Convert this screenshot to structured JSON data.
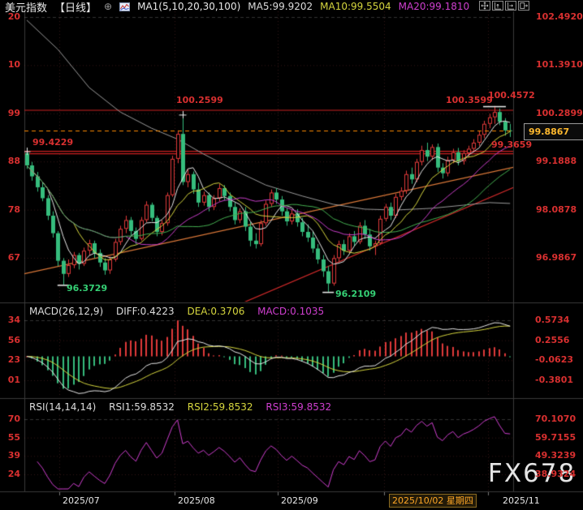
{
  "header": {
    "title": "美元指数",
    "period": "【日线】",
    "ma_group_label": "MA1(5,10,20,30,100)",
    "ma_values": [
      {
        "label": "MA5:99.9202",
        "color": "#dcdcdc"
      },
      {
        "label": "MA10:99.5504",
        "color": "#d6d63e"
      },
      {
        "label": "MA20:99.1810",
        "color": "#cf3fcf"
      }
    ]
  },
  "toolbar": {
    "icons": [
      "move-tool",
      "y-axis-scale",
      "x-axis-scale",
      "pan-right"
    ]
  },
  "watermark": "FX678",
  "macd_panel": {
    "title": "MACD(26,12,9)",
    "values": [
      {
        "label": "DIFF:0.4223",
        "color": "#dcdcdc"
      },
      {
        "label": "DEA:0.3706",
        "color": "#d6d63e"
      },
      {
        "label": "MACD:0.1035",
        "color": "#cf3fcf"
      }
    ],
    "axis_right": [
      "0.5734",
      "0.2556",
      "-0.0623",
      "-0.3801"
    ],
    "axis_left_clipped": [
      "34",
      "56",
      "23",
      "01"
    ]
  },
  "rsi_panel": {
    "title": "RSI(14,14,14)",
    "values": [
      {
        "label": "RSI1:59.8532",
        "color": "#dcdcdc"
      },
      {
        "label": "RSI2:59.8532",
        "color": "#d6d63e"
      },
      {
        "label": "RSI3:59.8532",
        "color": "#cf3fcf"
      }
    ],
    "axis_right": [
      "70.1070",
      "59.7155",
      "49.3239",
      "38.9324"
    ],
    "axis_left_clipped": [
      "70",
      "55",
      "39",
      "24"
    ]
  },
  "chart_data": {
    "type": "candlestick",
    "title": "美元指数 日线 (US Dollar Index, Daily)",
    "price_axis": [
      "102.4920",
      "101.3910",
      "100.2899",
      "99.1888",
      "98.0878",
      "96.9867"
    ],
    "price_axis_left_clipped": [
      "20",
      "10",
      "99",
      "88",
      "78",
      "67"
    ],
    "time_axis": [
      {
        "label": "2025/07",
        "highlight": false
      },
      {
        "label": "2025/08",
        "highlight": false
      },
      {
        "label": "2025/09",
        "highlight": false
      },
      {
        "label": "2025/10/02 星期四",
        "highlight": true
      },
      {
        "label": "2025/11",
        "highlight": false
      }
    ],
    "current_price_label": "99.8867",
    "colors": {
      "up": "#e03a3a",
      "down": "#36bd7d",
      "ma5": "#e8e8e8",
      "ma10": "#d6d63e",
      "ma20": "#c93ec9",
      "ma30": "#45b051",
      "ma100": "#9a9a9a",
      "diff": "#e8e8e8",
      "dea": "#d6d63e",
      "rsi": "#cf3fcf",
      "level": "#cc2020",
      "trend_orange": "#e07b3a",
      "trend_red": "#d52b2b",
      "last_price": "#ff8c00"
    },
    "ma_periods": [
      5,
      10,
      20,
      30
    ],
    "candles": [
      [
        99.38,
        99.4229,
        99.02,
        99.1
      ],
      [
        99.1,
        99.18,
        98.75,
        98.85
      ],
      [
        98.85,
        98.95,
        98.5,
        98.6
      ],
      [
        98.6,
        98.72,
        98.28,
        98.35
      ],
      [
        98.35,
        98.42,
        97.85,
        97.95
      ],
      [
        97.95,
        98.05,
        97.45,
        97.55
      ],
      [
        97.55,
        97.6,
        96.8,
        96.92
      ],
      [
        96.92,
        96.98,
        96.3729,
        96.62
      ],
      [
        96.62,
        96.95,
        96.55,
        96.82
      ],
      [
        96.82,
        97.12,
        96.75,
        97.05
      ],
      [
        97.05,
        97.1,
        96.72,
        96.85
      ],
      [
        96.85,
        97.22,
        96.8,
        97.15
      ],
      [
        97.15,
        97.4,
        97.05,
        97.32
      ],
      [
        97.32,
        97.38,
        96.98,
        97.1
      ],
      [
        97.1,
        97.18,
        96.78,
        96.88
      ],
      [
        96.88,
        96.98,
        96.6,
        96.7
      ],
      [
        96.7,
        97.02,
        96.62,
        96.95
      ],
      [
        96.95,
        97.42,
        96.9,
        97.35
      ],
      [
        97.35,
        97.72,
        97.28,
        97.65
      ],
      [
        97.65,
        97.95,
        97.55,
        97.85
      ],
      [
        97.85,
        97.92,
        97.5,
        97.6
      ],
      [
        97.6,
        97.68,
        97.3,
        97.42
      ],
      [
        97.42,
        97.92,
        97.38,
        97.85
      ],
      [
        97.85,
        98.28,
        97.8,
        98.2
      ],
      [
        98.2,
        98.25,
        97.82,
        97.9
      ],
      [
        97.9,
        97.95,
        97.48,
        97.58
      ],
      [
        97.58,
        97.85,
        97.5,
        97.78
      ],
      [
        97.78,
        98.48,
        97.72,
        98.42
      ],
      [
        98.42,
        99.32,
        98.38,
        99.25
      ],
      [
        99.25,
        99.9,
        99.15,
        99.82
      ],
      [
        99.82,
        100.2599,
        98.65,
        98.72
      ],
      [
        98.72,
        99.02,
        98.6,
        98.9
      ],
      [
        98.9,
        98.96,
        98.45,
        98.55
      ],
      [
        98.55,
        98.7,
        98.15,
        98.25
      ],
      [
        98.25,
        98.5,
        98.18,
        98.42
      ],
      [
        98.42,
        98.48,
        98.05,
        98.15
      ],
      [
        98.15,
        98.42,
        98.08,
        98.35
      ],
      [
        98.35,
        98.68,
        98.28,
        98.58
      ],
      [
        98.58,
        98.65,
        98.3,
        98.4
      ],
      [
        98.4,
        98.48,
        98.05,
        98.15
      ],
      [
        98.15,
        98.25,
        97.75,
        97.85
      ],
      [
        97.85,
        98.12,
        97.78,
        98.05
      ],
      [
        98.05,
        98.15,
        97.6,
        97.7
      ],
      [
        97.7,
        97.8,
        97.25,
        97.38
      ],
      [
        97.38,
        97.55,
        97.2,
        97.3
      ],
      [
        97.3,
        97.85,
        97.25,
        97.78
      ],
      [
        97.78,
        98.3,
        97.72,
        98.22
      ],
      [
        98.22,
        98.55,
        98.15,
        98.48
      ],
      [
        98.48,
        98.58,
        98.22,
        98.32
      ],
      [
        98.32,
        98.4,
        97.95,
        98.05
      ],
      [
        98.05,
        98.12,
        97.72,
        97.82
      ],
      [
        97.82,
        98.08,
        97.75,
        98.0
      ],
      [
        98.0,
        98.1,
        97.7,
        97.8
      ],
      [
        97.8,
        97.9,
        97.48,
        97.58
      ],
      [
        97.58,
        97.75,
        97.35,
        97.45
      ],
      [
        97.45,
        97.58,
        97.1,
        97.2
      ],
      [
        97.2,
        97.3,
        96.85,
        96.95
      ],
      [
        96.95,
        97.05,
        96.55,
        96.68
      ],
      [
        96.68,
        96.8,
        96.2109,
        96.4
      ],
      [
        96.4,
        97.05,
        96.35,
        96.98
      ],
      [
        96.98,
        97.38,
        96.9,
        97.3
      ],
      [
        97.3,
        97.4,
        97.05,
        97.15
      ],
      [
        97.15,
        97.55,
        97.1,
        97.48
      ],
      [
        97.48,
        97.6,
        97.25,
        97.35
      ],
      [
        97.35,
        97.8,
        97.3,
        97.72
      ],
      [
        97.72,
        97.85,
        97.42,
        97.52
      ],
      [
        97.52,
        97.65,
        97.15,
        97.25
      ],
      [
        97.25,
        97.38,
        97.05,
        97.32
      ],
      [
        97.32,
        97.95,
        97.28,
        97.88
      ],
      [
        97.88,
        98.22,
        97.82,
        98.15
      ],
      [
        98.15,
        98.25,
        97.85,
        97.95
      ],
      [
        97.95,
        98.45,
        97.9,
        98.38
      ],
      [
        98.38,
        98.6,
        98.3,
        98.52
      ],
      [
        98.52,
        98.98,
        98.45,
        98.9
      ],
      [
        98.9,
        99.05,
        98.68,
        98.78
      ],
      [
        98.78,
        99.25,
        98.72,
        99.18
      ],
      [
        99.18,
        99.55,
        99.1,
        99.45
      ],
      [
        99.45,
        99.62,
        99.2,
        99.3
      ],
      [
        99.3,
        99.58,
        99.22,
        99.52
      ],
      [
        99.52,
        99.6,
        98.95,
        99.05
      ],
      [
        99.05,
        99.15,
        98.8,
        98.92
      ],
      [
        98.92,
        99.3,
        98.85,
        99.22
      ],
      [
        99.22,
        99.48,
        99.15,
        99.4
      ],
      [
        99.4,
        99.5,
        99.1,
        99.2
      ],
      [
        99.2,
        99.45,
        99.12,
        99.38
      ],
      [
        99.38,
        99.55,
        99.28,
        99.48
      ],
      [
        99.48,
        99.7,
        99.4,
        99.62
      ],
      [
        99.62,
        99.88,
        99.55,
        99.8
      ],
      [
        99.8,
        100.12,
        99.72,
        100.05
      ],
      [
        100.05,
        100.28,
        99.95,
        100.2
      ],
      [
        100.2,
        100.4572,
        100.05,
        100.32
      ],
      [
        100.32,
        100.4,
        100.02,
        100.1
      ],
      [
        100.1,
        100.18,
        99.78,
        99.9
      ],
      [
        99.9,
        100.05,
        99.75,
        99.8867
      ]
    ],
    "ma100_points": [
      [
        0,
        102.42
      ],
      [
        6,
        101.75
      ],
      [
        12,
        100.88
      ],
      [
        18,
        100.32
      ],
      [
        24,
        99.95
      ],
      [
        29,
        99.7
      ],
      [
        34,
        99.36
      ],
      [
        40,
        98.99
      ],
      [
        46,
        98.65
      ],
      [
        53,
        98.4
      ],
      [
        59,
        98.21
      ],
      [
        65,
        98.1
      ],
      [
        71,
        98.08
      ],
      [
        78,
        98.12
      ],
      [
        84,
        98.19
      ],
      [
        89,
        98.25
      ],
      [
        93,
        98.23
      ]
    ],
    "hlines": [
      {
        "price": 100.3599,
        "style": "solid",
        "color": "#cc2020"
      },
      {
        "price": 99.4229,
        "style": "solid",
        "color": "#cc2020"
      },
      {
        "price": 99.3659,
        "style": "solid",
        "color": "#cc2020"
      },
      {
        "price": 99.8867,
        "style": "dashed",
        "color": "#ff8c00"
      }
    ],
    "trendlines": [
      {
        "d1": -0.5,
        "p1": 96.62,
        "d2": 98.0,
        "p2": 99.17,
        "color": "#e07b3a"
      },
      {
        "d1": 40.6,
        "p1": 95.91,
        "d2": 97.7,
        "p2": 98.8,
        "color": "#d52b2b"
      }
    ],
    "markers": [
      {
        "type": "plus",
        "day": 0,
        "price": 99.4229,
        "w": 9
      },
      {
        "type": "plus",
        "day": 30,
        "price": 100.2599,
        "w": 9
      },
      {
        "type": "dash",
        "day": 7,
        "price": 96.3729,
        "w": 14
      },
      {
        "type": "dash",
        "day": 58,
        "price": 96.2109,
        "w": 14
      },
      {
        "type": "dash",
        "day": 90,
        "price": 100.4572,
        "w": 28
      }
    ],
    "annotations": [
      {
        "text": "100.2599",
        "tone": "red"
      },
      {
        "text": "100.3599",
        "tone": "red"
      },
      {
        "text": "100.4572",
        "tone": "red"
      },
      {
        "text": "99.4229",
        "tone": "red"
      },
      {
        "text": "99.3659",
        "tone": "red"
      },
      {
        "text": "96.3729",
        "tone": "green"
      },
      {
        "text": "96.2109",
        "tone": "green"
      }
    ],
    "indicators": {
      "macd": {
        "fast": 12,
        "slow": 26,
        "signal": 9,
        "diff": 0.4223,
        "dea": 0.3706,
        "macd": 0.1035,
        "axis": [
          0.5734,
          0.2556,
          -0.0623,
          -0.3801
        ]
      },
      "rsi": {
        "periods": [
          14,
          14,
          14
        ],
        "rsi1": 59.8532,
        "rsi2": 59.8532,
        "rsi3": 59.8532,
        "axis": [
          70.107,
          59.7155,
          49.3239,
          38.9324
        ]
      }
    }
  }
}
